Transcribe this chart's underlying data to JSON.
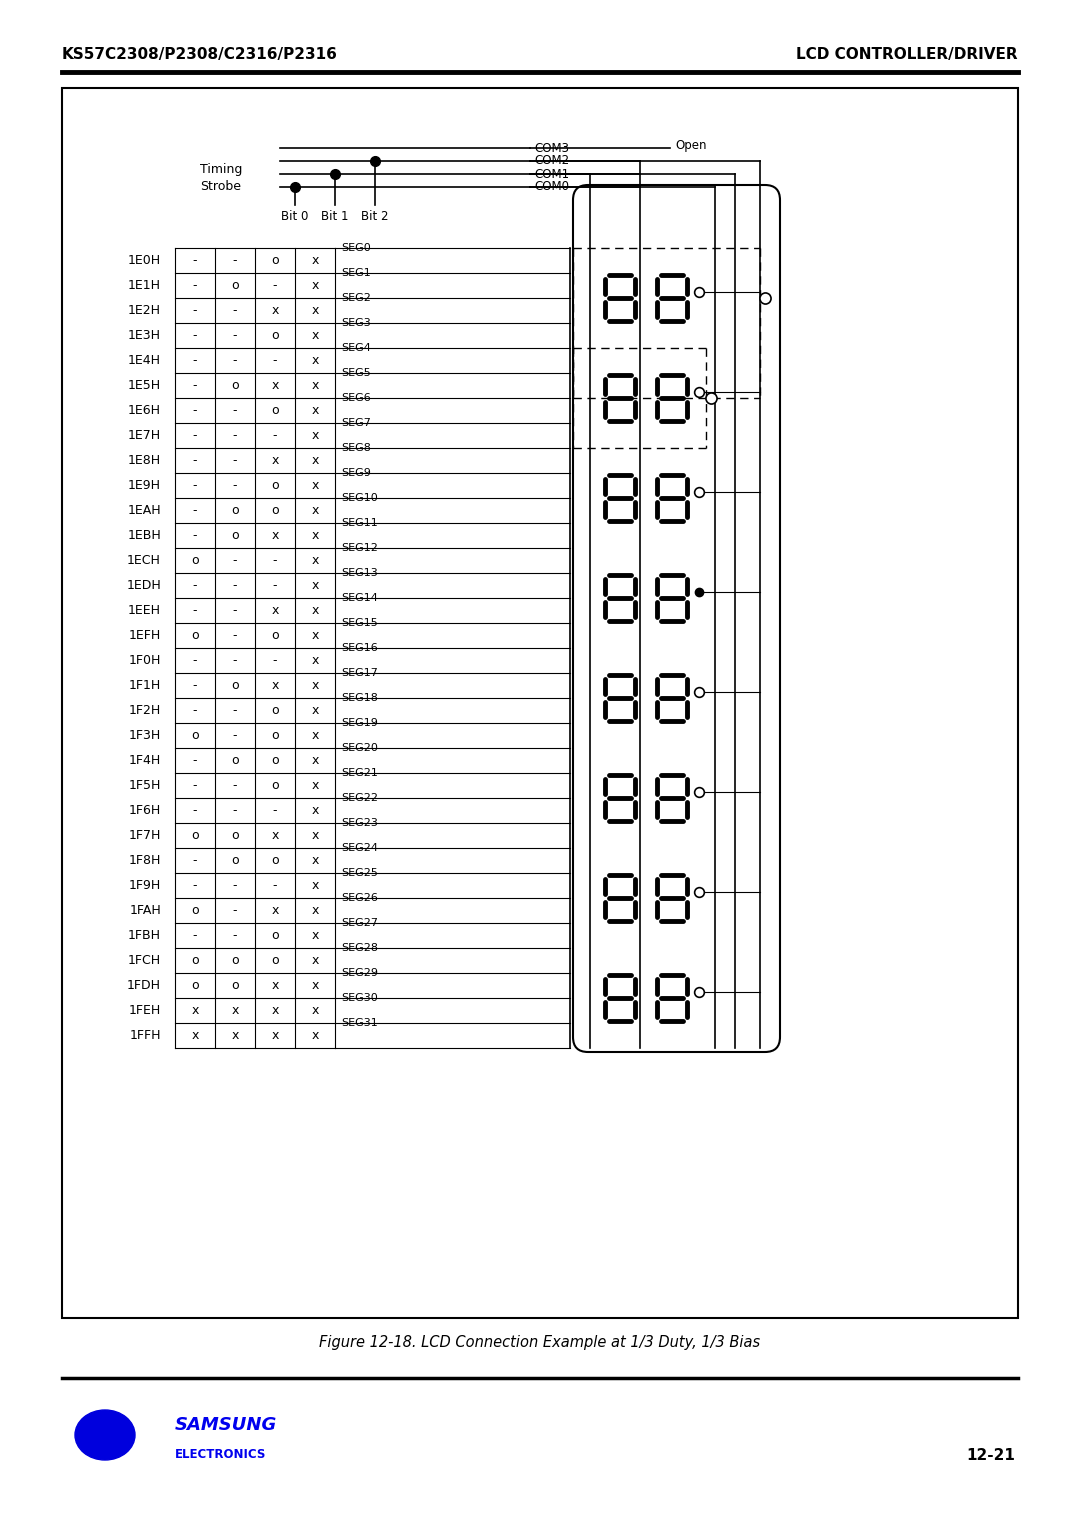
{
  "title_left": "KS57C2308/P2308/C2316/P2316",
  "title_right": "LCD CONTROLLER/DRIVER",
  "figure_caption": "Figure 12-18. LCD Connection Example at 1/3 Duty, 1/3 Bias",
  "page_number": "12-21",
  "header_labels": [
    "1E0H",
    "1E1H",
    "1E2H",
    "1E3H",
    "1E4H",
    "1E5H",
    "1E6H",
    "1E7H",
    "1E8H",
    "1E9H",
    "1EAH",
    "1EBH",
    "1ECH",
    "1EDH",
    "1EEH",
    "1EFH",
    "1F0H",
    "1F1H",
    "1F2H",
    "1F3H",
    "1F4H",
    "1F5H",
    "1F6H",
    "1F7H",
    "1F8H",
    "1F9H",
    "1FAH",
    "1FBH",
    "1FCH",
    "1FDH",
    "1FEH",
    "1FFH"
  ],
  "seg_labels": [
    "SEG0",
    "SEG1",
    "SEG2",
    "SEG3",
    "SEG4",
    "SEG5",
    "SEG6",
    "SEG7",
    "SEG8",
    "SEG9",
    "SEG10",
    "SEG11",
    "SEG12",
    "SEG13",
    "SEG14",
    "SEG15",
    "SEG16",
    "SEG17",
    "SEG18",
    "SEG19",
    "SEG20",
    "SEG21",
    "SEG22",
    "SEG23",
    "SEG24",
    "SEG25",
    "SEG26",
    "SEG27",
    "SEG28",
    "SEG29",
    "SEG30",
    "SEG31"
  ],
  "com_labels": [
    "COM3",
    "COM2",
    "COM1",
    "COM0"
  ],
  "bit_labels": [
    "Bit 0",
    "Bit 1",
    "Bit 2"
  ],
  "timing_label": "Timing\nStrobe",
  "open_label": "Open",
  "table_data": [
    [
      "-",
      "-",
      "o",
      "x"
    ],
    [
      "-",
      "o",
      "-",
      "x"
    ],
    [
      "-",
      "-",
      "x",
      "x"
    ],
    [
      "-",
      "-",
      "o",
      "x"
    ],
    [
      "-",
      "-",
      "-",
      "x"
    ],
    [
      "-",
      "o",
      "x",
      "x"
    ],
    [
      "-",
      "-",
      "o",
      "x"
    ],
    [
      "-",
      "-",
      "-",
      "x"
    ],
    [
      "-",
      "-",
      "x",
      "x"
    ],
    [
      "-",
      "-",
      "o",
      "x"
    ],
    [
      "-",
      "o",
      "o",
      "x"
    ],
    [
      "-",
      "o",
      "x",
      "x"
    ],
    [
      "o",
      "-",
      "-",
      "x"
    ],
    [
      "-",
      "-",
      "-",
      "x"
    ],
    [
      "-",
      "-",
      "x",
      "x"
    ],
    [
      "o",
      "-",
      "o",
      "x"
    ],
    [
      "-",
      "-",
      "-",
      "x"
    ],
    [
      "-",
      "o",
      "x",
      "x"
    ],
    [
      "-",
      "-",
      "o",
      "x"
    ],
    [
      "o",
      "-",
      "o",
      "x"
    ],
    [
      "-",
      "o",
      "o",
      "x"
    ],
    [
      "-",
      "-",
      "o",
      "x"
    ],
    [
      "-",
      "-",
      "-",
      "x"
    ],
    [
      "o",
      "o",
      "x",
      "x"
    ],
    [
      "-",
      "o",
      "o",
      "x"
    ],
    [
      "-",
      "-",
      "-",
      "x"
    ],
    [
      "o",
      "-",
      "x",
      "x"
    ],
    [
      "-",
      "-",
      "o",
      "x"
    ],
    [
      "o",
      "o",
      "o",
      "x"
    ],
    [
      "o",
      "o",
      "x",
      "x"
    ],
    [
      "x",
      "x",
      "x",
      "x"
    ],
    [
      "x",
      "x",
      "x",
      "x"
    ]
  ],
  "bg_color": "#ffffff",
  "border_color": "#000000",
  "text_color": "#000000",
  "samsung_blue": "#0000ee",
  "table_line_color": "#000000",
  "samsung_logo_color": "#0000dd"
}
